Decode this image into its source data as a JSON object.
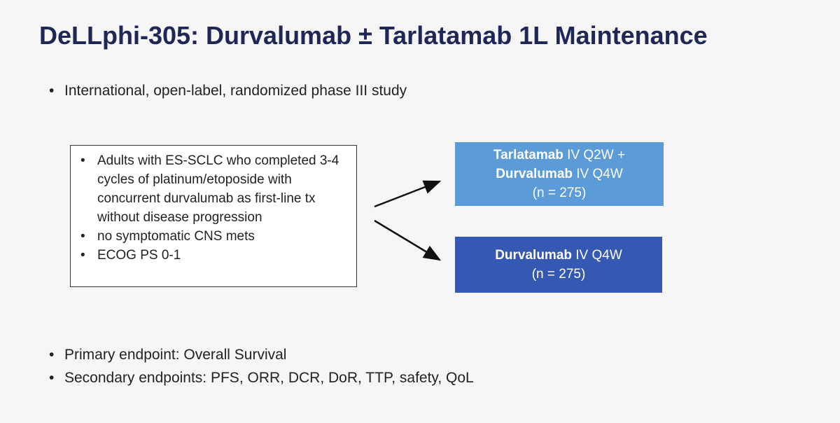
{
  "header": {
    "title": "DeLLphi-305: Durvalumab ± Tarlatamab 1L Maintenance"
  },
  "intro": [
    "International, open-label, randomized phase III study"
  ],
  "eligibility": [
    "Adults with ES-SCLC who completed 3-4 cycles of platinum/etoposide with concurrent durvalumab as first-line tx without disease progression",
    "no symptomatic CNS mets",
    "ECOG PS 0-1"
  ],
  "arms": [
    {
      "lines": [
        {
          "drug": "Tarlatamab",
          "dose": "IV Q2W +"
        },
        {
          "drug": "Durvalumab",
          "dose": "IV Q4W"
        }
      ],
      "n": "(n = 275)"
    },
    {
      "lines": [
        {
          "drug": "Durvalumab",
          "dose": "IV Q4W"
        }
      ],
      "n": "(n = 275)"
    }
  ],
  "endpoints": [
    "Primary endpoint: Overall Survival",
    "Secondary endpoints: PFS, ORR, DCR, DoR, TTP, safety, QoL"
  ]
}
